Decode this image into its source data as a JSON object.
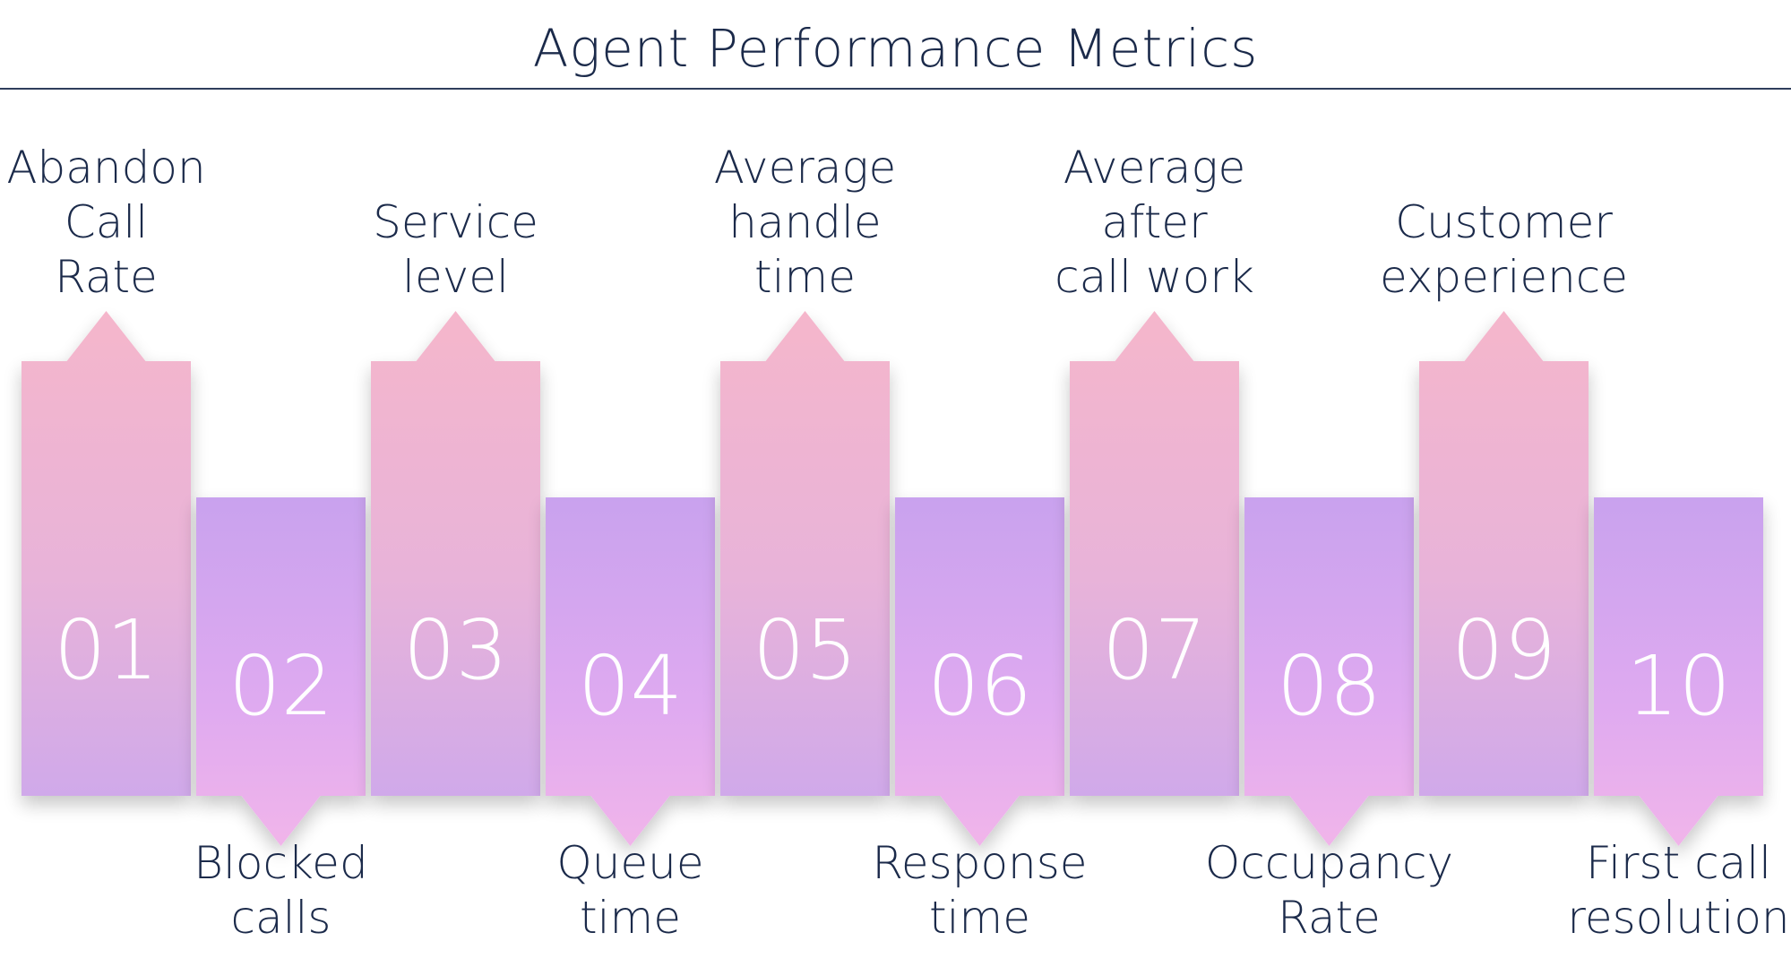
{
  "title": "Agent Performance Metrics",
  "colors": {
    "pink": "#f4b6cc",
    "lavender": "#c9a3ee",
    "orchid": "#eeb6ee",
    "text": "#1b2a4a",
    "rule": "#2f3e5c"
  },
  "metrics": [
    {
      "number": "01",
      "position": "top",
      "lines": [
        "Abandon",
        "Call",
        "Rate"
      ]
    },
    {
      "number": "02",
      "position": "bottom",
      "lines": [
        "Blocked",
        "calls"
      ]
    },
    {
      "number": "03",
      "position": "top",
      "lines": [
        "Service",
        "level"
      ]
    },
    {
      "number": "04",
      "position": "bottom",
      "lines": [
        "Queue",
        "time"
      ]
    },
    {
      "number": "05",
      "position": "top",
      "lines": [
        "Average",
        "handle",
        "time"
      ]
    },
    {
      "number": "06",
      "position": "bottom",
      "lines": [
        "Response",
        "time"
      ]
    },
    {
      "number": "07",
      "position": "top",
      "lines": [
        "Average",
        "after",
        "call work"
      ]
    },
    {
      "number": "08",
      "position": "bottom",
      "lines": [
        "Occupancy",
        "Rate"
      ]
    },
    {
      "number": "09",
      "position": "top",
      "lines": [
        "Customer",
        "experience"
      ]
    },
    {
      "number": "10",
      "position": "bottom",
      "lines": [
        "First call",
        "resolution"
      ]
    }
  ]
}
